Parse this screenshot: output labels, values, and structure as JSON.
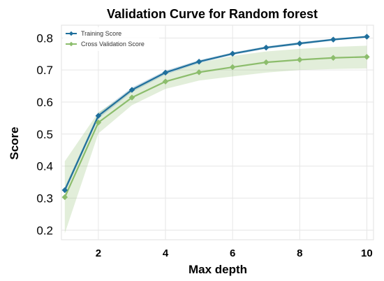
{
  "chart_data": {
    "type": "line",
    "title": "Validation Curve for Random forest",
    "xlabel": "Max depth",
    "ylabel": "Score",
    "x": [
      1,
      2,
      3,
      4,
      5,
      6,
      7,
      8,
      9,
      10
    ],
    "xlim": [
      0.9,
      10.2
    ],
    "ylim": [
      0.17,
      0.84
    ],
    "xticks": [
      2,
      4,
      6,
      8,
      10
    ],
    "yticks": [
      0.2,
      0.3,
      0.4,
      0.5,
      0.6,
      0.7,
      0.8
    ],
    "xtick_labels": [
      "2",
      "4",
      "6",
      "8",
      "10"
    ],
    "ytick_labels": [
      "0.2",
      "0.3",
      "0.4",
      "0.5",
      "0.6",
      "0.7",
      "0.8"
    ],
    "grid": true,
    "legend_position": "top-left",
    "series": [
      {
        "name": "Training Score",
        "color": "#1f6f9c",
        "values": [
          0.325,
          0.557,
          0.638,
          0.692,
          0.726,
          0.751,
          0.77,
          0.783,
          0.795,
          0.804
        ],
        "band_upper": [
          0.334,
          0.565,
          0.645,
          0.698,
          0.731,
          0.755,
          0.774,
          0.787,
          0.798,
          0.807
        ],
        "band_lower": [
          0.316,
          0.549,
          0.631,
          0.686,
          0.721,
          0.747,
          0.766,
          0.779,
          0.792,
          0.801
        ]
      },
      {
        "name": "Cross Validation Score",
        "color": "#8cbd6c",
        "values": [
          0.303,
          0.536,
          0.614,
          0.664,
          0.693,
          0.709,
          0.724,
          0.732,
          0.738,
          0.741
        ],
        "band_upper": [
          0.415,
          0.568,
          0.636,
          0.688,
          0.722,
          0.744,
          0.758,
          0.766,
          0.772,
          0.776
        ],
        "band_lower": [
          0.19,
          0.502,
          0.59,
          0.641,
          0.667,
          0.68,
          0.692,
          0.7,
          0.703,
          0.705
        ]
      }
    ]
  }
}
